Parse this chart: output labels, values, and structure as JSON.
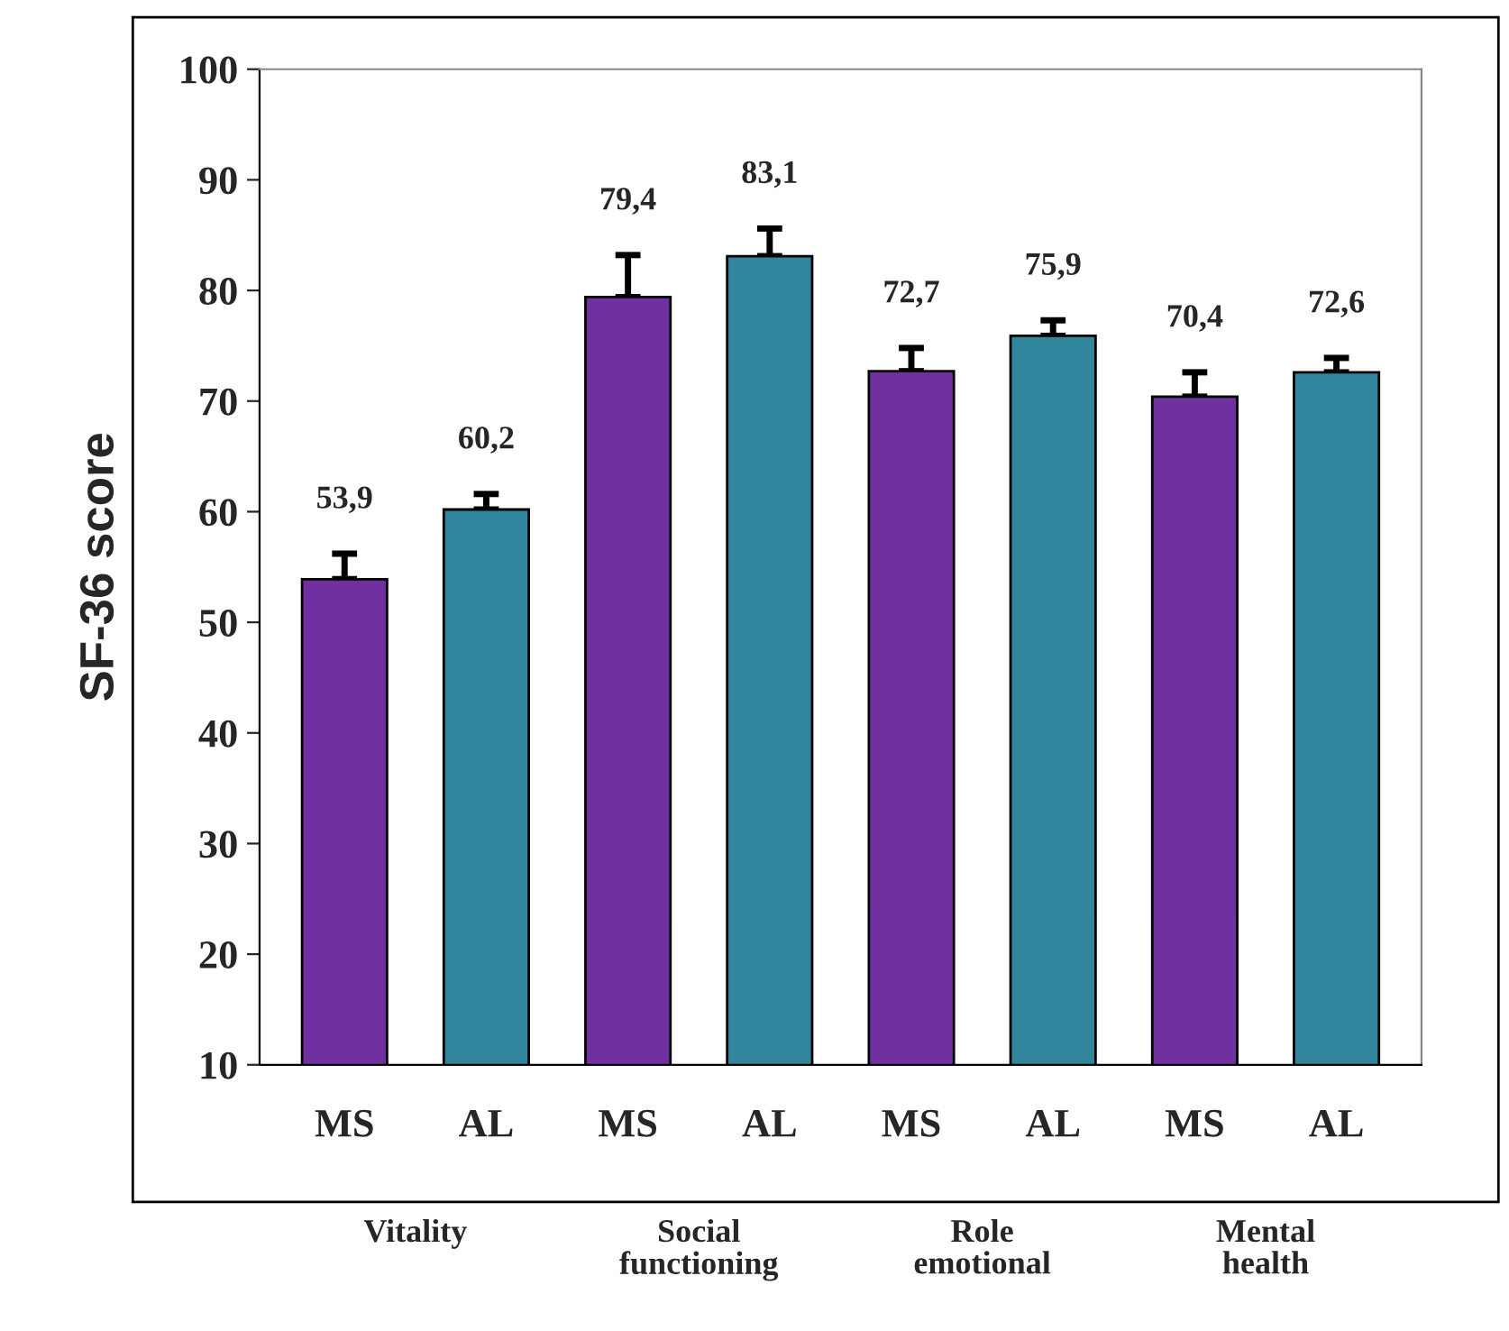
{
  "chart_data": {
    "type": "bar",
    "ylabel": "SF-36 score",
    "categories": [
      "MS",
      "AL",
      "MS",
      "AL",
      "MS",
      "AL",
      "MS",
      "AL"
    ],
    "values": [
      53.9,
      60.2,
      79.4,
      83.1,
      72.7,
      75.9,
      70.4,
      72.6
    ],
    "colors": [
      "#7030a0",
      "#31859c",
      "#7030a0",
      "#31859c",
      "#7030a0",
      "#31859c",
      "#7030a0",
      "#31859c"
    ],
    "errors": [
      [
        53.9,
        56.2
      ],
      [
        60.2,
        61.6
      ],
      [
        79.4,
        83.2
      ],
      [
        83.1,
        85.6
      ],
      [
        72.7,
        74.8
      ],
      [
        75.9,
        77.3
      ],
      [
        70.4,
        72.6
      ],
      [
        72.6,
        73.9
      ]
    ],
    "value_labels": [
      "53,9",
      "60,2",
      "79,4",
      "83,1",
      "72,7",
      "75,9",
      "70,4",
      "72,6"
    ],
    "annotations": [
      "Vitality",
      "Social\nfunctioning",
      "Role\nemotional",
      "Mental\nhealth"
    ],
    "ylim": [
      10,
      100
    ],
    "yticks": [
      10,
      20,
      30,
      40,
      50,
      60,
      70,
      80,
      90,
      100
    ],
    "grid": false,
    "legend": false
  }
}
